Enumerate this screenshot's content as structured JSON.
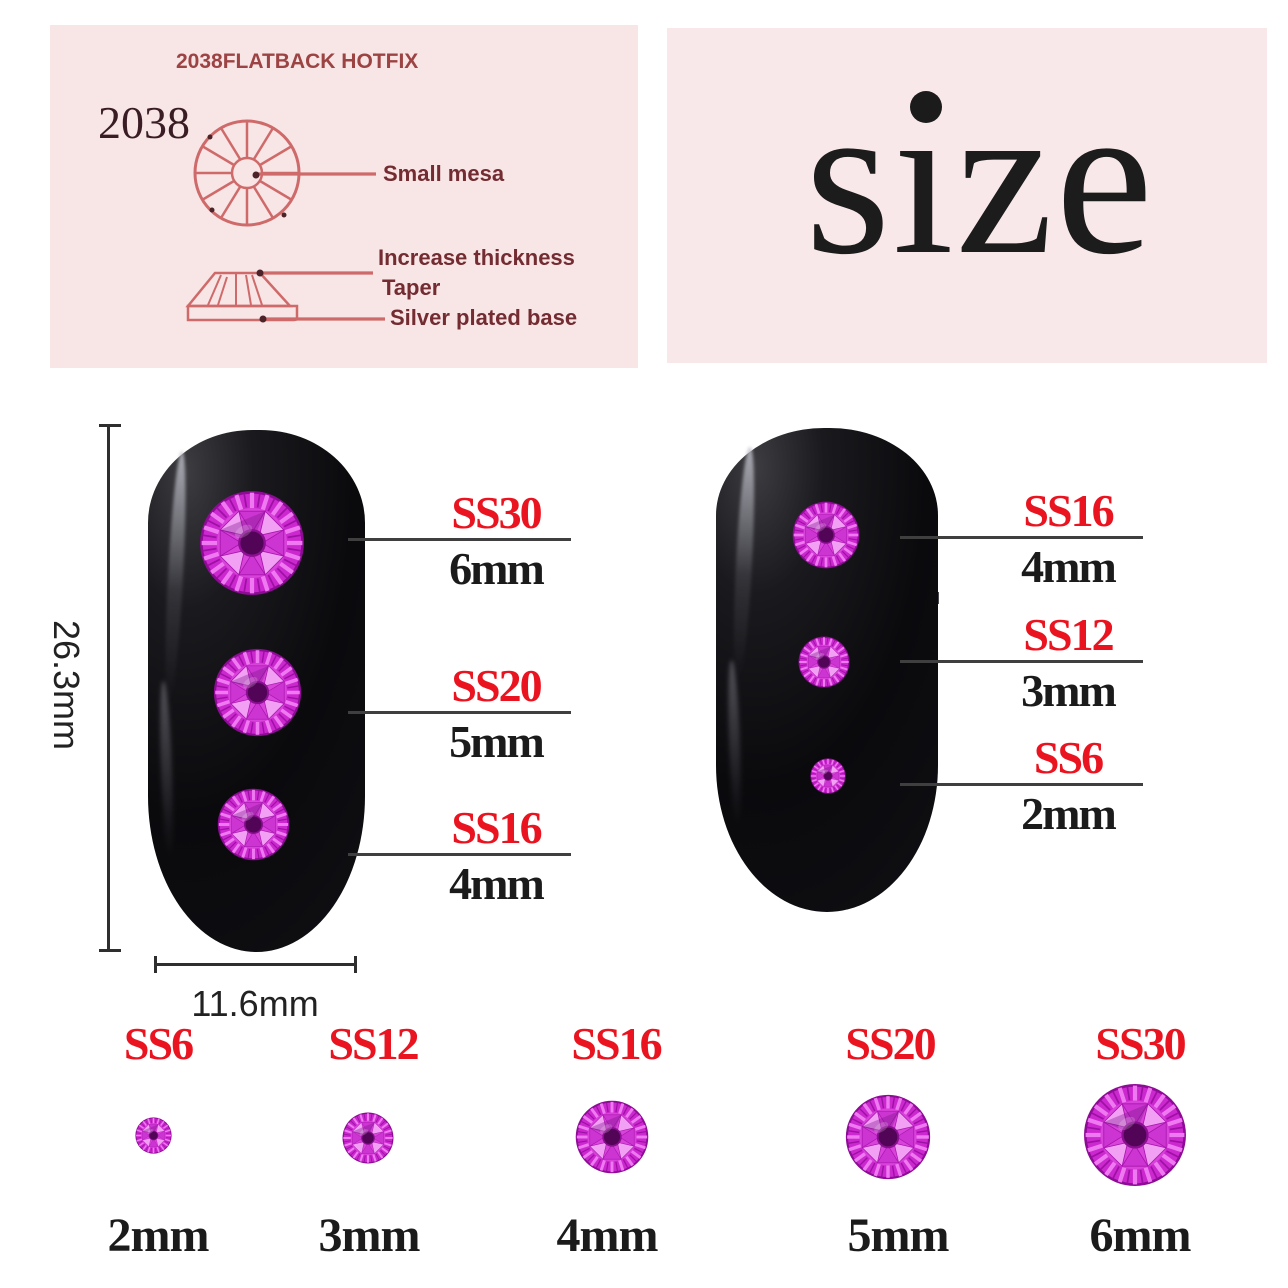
{
  "colors": {
    "panel_pink": "#f8e5e6",
    "accent_red": "#ea1420",
    "diagram_stroke": "#cf6a6a",
    "annotation_maroon": "#732c31",
    "stone_magenta": "#cc2fd4",
    "nail_black": "#0a0a0d",
    "text_black": "#1b1b1b"
  },
  "spec_panel": {
    "title": "2038FLATBACK HOTFIX",
    "model": "2038",
    "top_view_label": "Small mesa",
    "side_view_labels": [
      "Increase thickness",
      "Taper",
      "Silver plated base"
    ]
  },
  "size_panel": {
    "word": "size",
    "word_before_i": "s",
    "word_dotless_i": "ı",
    "word_after_i": "ze"
  },
  "measurements": {
    "nail_height": "26.3mm",
    "nail_width": "11.6mm"
  },
  "left_nail_callouts": [
    {
      "ss": "SS30",
      "mm": "6mm"
    },
    {
      "ss": "SS20",
      "mm": "5mm"
    },
    {
      "ss": "SS16",
      "mm": "4mm"
    }
  ],
  "right_nail_callouts": [
    {
      "ss": "SS16",
      "mm": "4mm"
    },
    {
      "ss": "SS12",
      "mm": "3mm"
    },
    {
      "ss": "SS6",
      "mm": "2mm"
    }
  ],
  "size_chart": [
    {
      "ss": "SS6",
      "mm": "2mm"
    },
    {
      "ss": "SS12",
      "mm": "3mm"
    },
    {
      "ss": "SS16",
      "mm": "4mm"
    },
    {
      "ss": "SS20",
      "mm": "5mm"
    },
    {
      "ss": "SS30",
      "mm": "6mm"
    }
  ]
}
